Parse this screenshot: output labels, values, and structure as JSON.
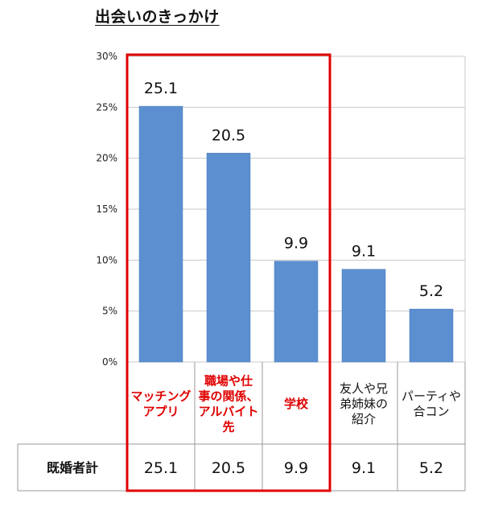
{
  "chart_data": {
    "type": "bar",
    "title": "出会いのきっかけ",
    "categories": [
      [
        "マッチング",
        "アプリ"
      ],
      [
        "職場や仕",
        "事の関係、",
        "アルバイト",
        "先"
      ],
      [
        "学校"
      ],
      [
        "友人や兄",
        "弟姉妹の",
        "紹介"
      ],
      [
        "パーティや",
        "合コン"
      ]
    ],
    "values": [
      25.1,
      20.5,
      9.9,
      9.1,
      5.2
    ],
    "value_labels": [
      "25.1",
      "20.5",
      "9.9",
      "9.1",
      "5.2"
    ],
    "ylim": [
      0,
      30
    ],
    "y_ticks": [
      0,
      5,
      10,
      15,
      20,
      25,
      30
    ],
    "y_tick_labels": [
      "0%",
      "5%",
      "10%",
      "15%",
      "20%",
      "25%",
      "30%"
    ],
    "grid": true,
    "highlight_categories": [
      0,
      1,
      2
    ],
    "colors": {
      "bar": "#5b8fd0",
      "bar_edge": "#4a7bbd",
      "highlight": "#e00000",
      "grid": "#c8c8c8",
      "highlight_text": "#e00000"
    },
    "table": {
      "row_label": "既婚者計",
      "values": [
        "25.1",
        "20.5",
        "9.9",
        "9.1",
        "5.2"
      ]
    }
  }
}
